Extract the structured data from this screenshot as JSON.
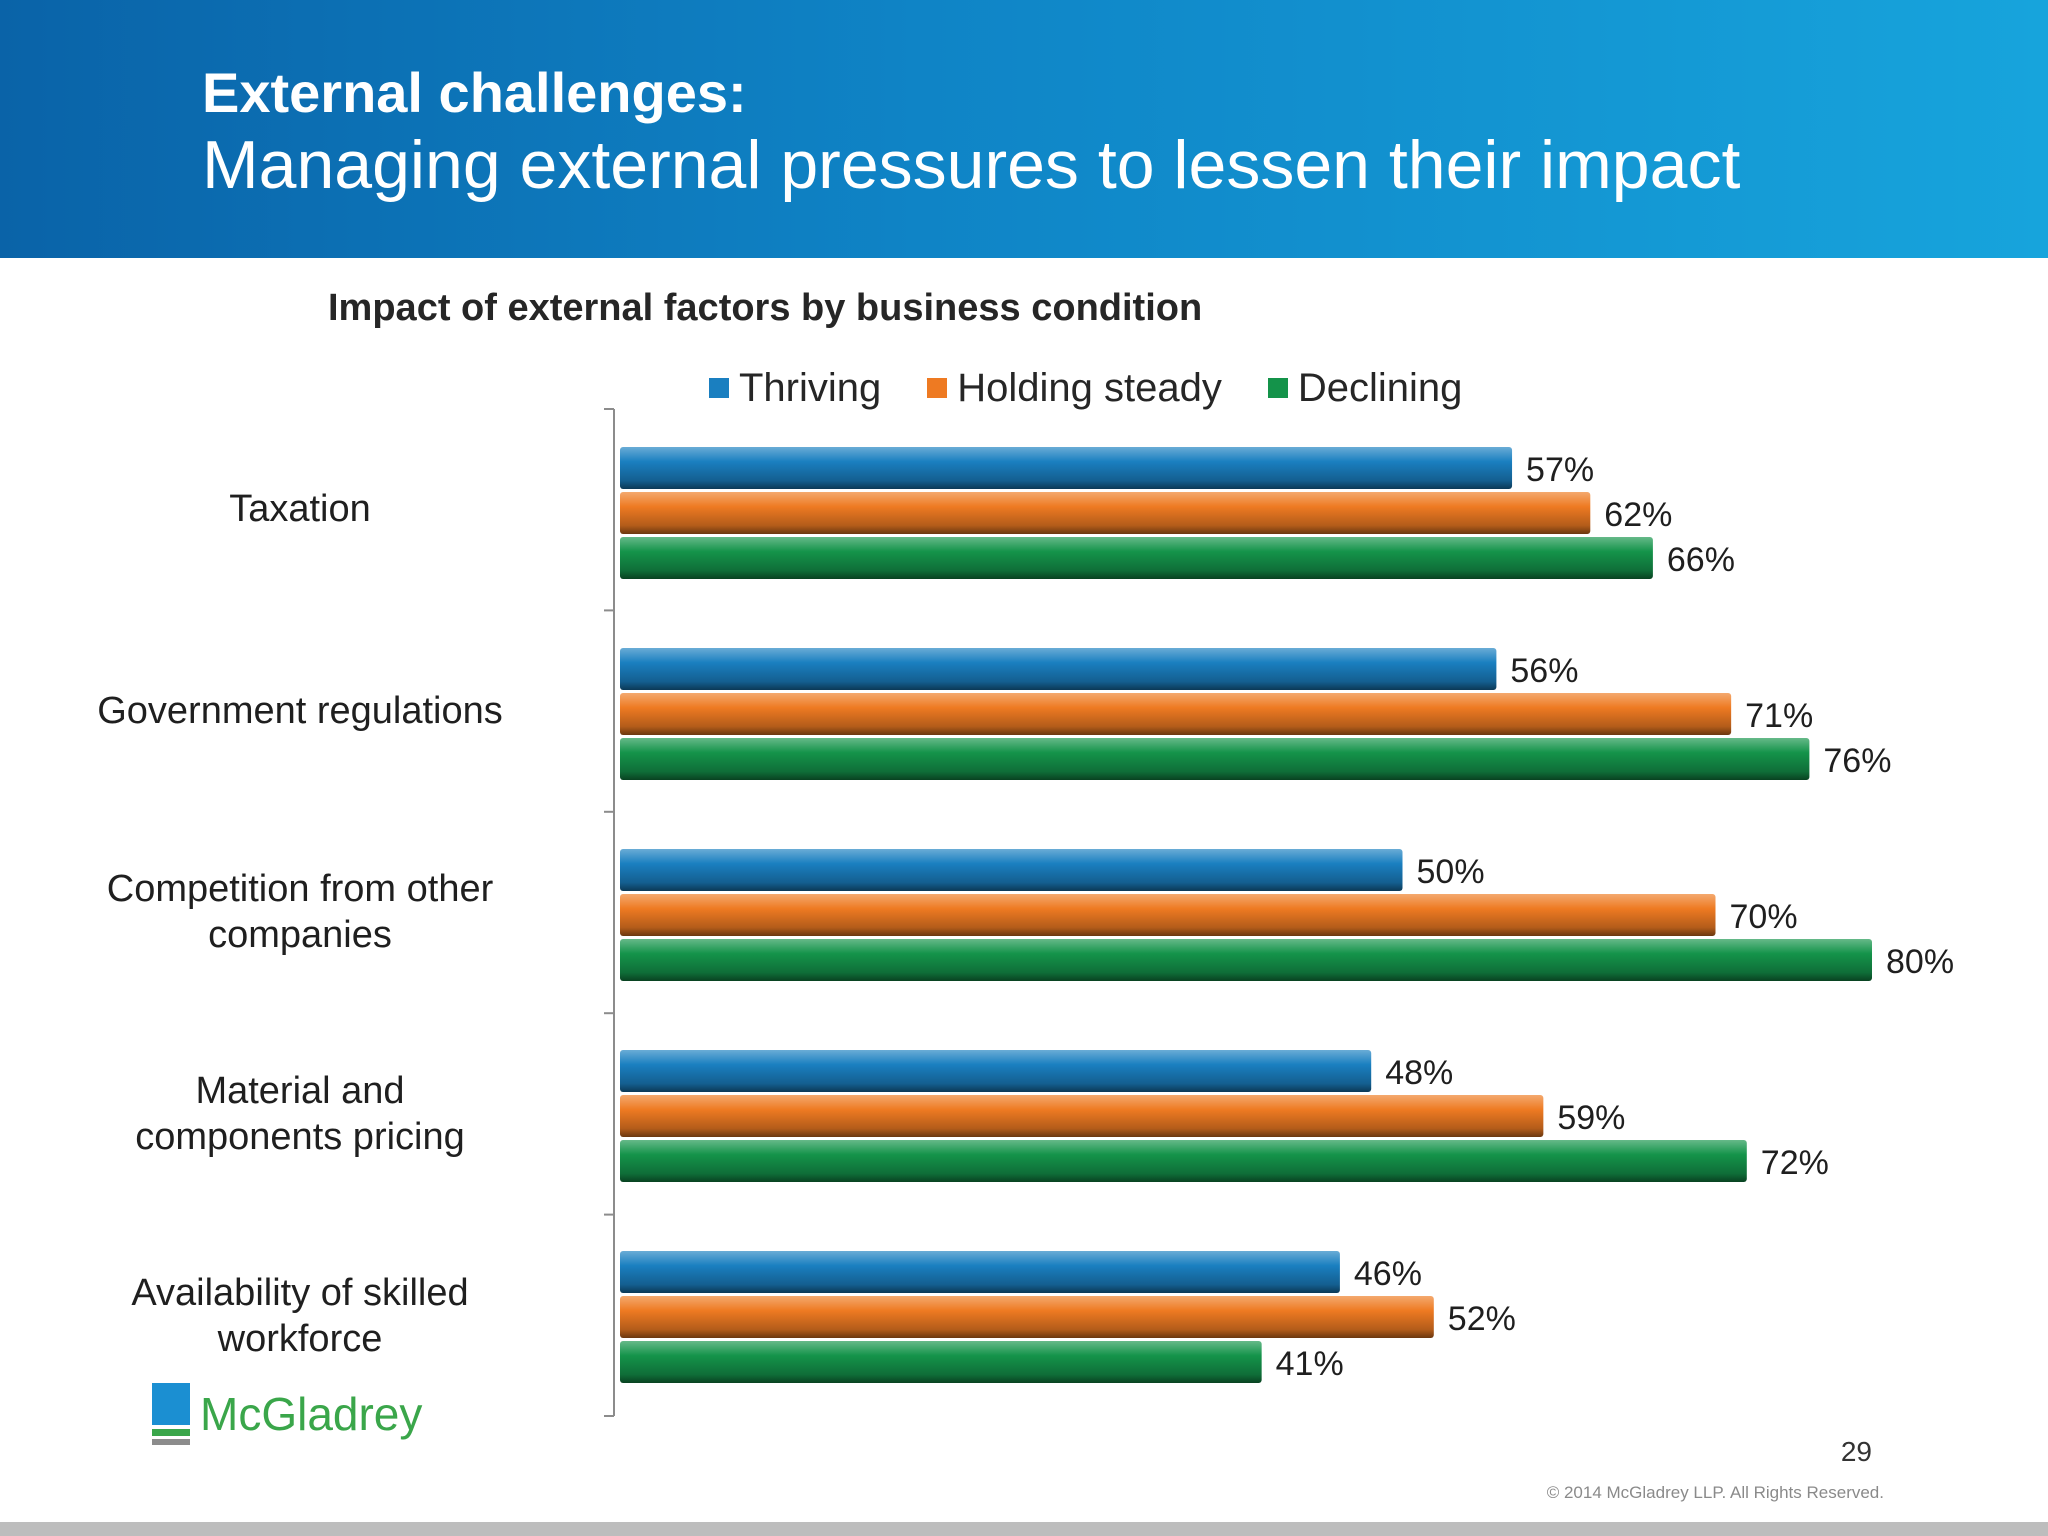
{
  "header": {
    "title": "External challenges:",
    "subtitle": "Managing external pressures to lessen their impact"
  },
  "chart_data": {
    "type": "bar",
    "orientation": "horizontal",
    "title": "Impact of external factors by business condition",
    "categories": [
      "Taxation",
      "Government regulations",
      "Competition from other companies",
      "Material and components pricing",
      "Availability of skilled workforce"
    ],
    "series": [
      {
        "name": "Thriving",
        "color": "#1a7fc0",
        "values": [
          57,
          56,
          50,
          48,
          46
        ]
      },
      {
        "name": "Holding steady",
        "color": "#ee7a22",
        "values": [
          62,
          71,
          70,
          59,
          52
        ]
      },
      {
        "name": "Declining",
        "color": "#14934a",
        "values": [
          66,
          76,
          80,
          72,
          41
        ]
      }
    ],
    "value_suffix": "%",
    "xlim": [
      0,
      80
    ],
    "grid": false,
    "legend_position": "top"
  },
  "category_lines": [
    [
      "Taxation"
    ],
    [
      "Government regulations"
    ],
    [
      "Competition from other",
      "companies"
    ],
    [
      "Material and",
      "components pricing"
    ],
    [
      "Availability of skilled",
      "workforce"
    ]
  ],
  "logo": {
    "text": "McGladrey"
  },
  "footer": {
    "page_number": "29",
    "copyright": "© 2014 McGladrey LLP. All Rights Reserved."
  }
}
